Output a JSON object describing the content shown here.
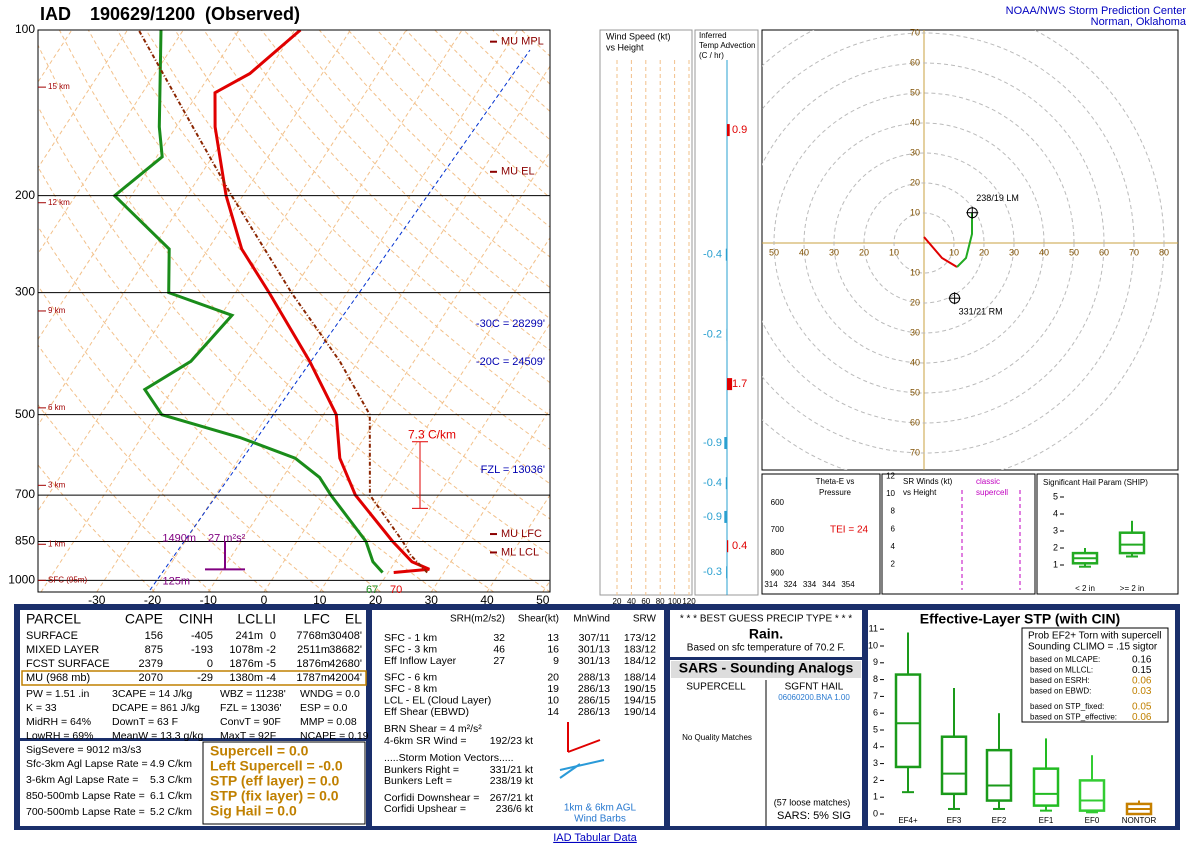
{
  "header": {
    "station": "IAD",
    "time": "190629/1200",
    "status": "(Observed)",
    "org": "NOAA/NWS Storm Prediction Center",
    "location": "Norman, Oklahoma"
  },
  "skewt": {
    "type": "skewt",
    "plim": [
      100,
      1050
    ],
    "pressure_ticks": [
      100,
      200,
      300,
      500,
      700,
      850,
      1000
    ],
    "temp_ticks": [
      -30,
      -20,
      -10,
      0,
      10,
      20,
      30,
      40,
      50
    ],
    "height_labels": [
      {
        "p": 127,
        "label": "15 km"
      },
      {
        "p": 206,
        "label": "12 km"
      },
      {
        "p": 324,
        "label": "9 km"
      },
      {
        "p": 486,
        "label": "6 km"
      },
      {
        "p": 672,
        "label": "3 km"
      },
      {
        "p": 860,
        "label": "1 km"
      },
      {
        "p": 1000,
        "label": "SFC (95m)"
      }
    ],
    "levels": [
      {
        "p": 105,
        "label": "MU MPL"
      },
      {
        "p": 181,
        "label": "MU EL"
      },
      {
        "p": 824,
        "label": "MU LFC"
      },
      {
        "p": 890,
        "label": "ML LCL"
      }
    ],
    "isotherm_heights": [
      {
        "p": 342,
        "label": "-30C = 28299'"
      },
      {
        "p": 401,
        "label": "-20C = 24509'"
      },
      {
        "p": 630,
        "label": "FZL = 13036'"
      }
    ],
    "profiles": [
      {
        "color": "#e00000",
        "width": 3,
        "dash": false,
        "p": [
          968,
          955,
          925,
          850,
          700,
          600,
          500,
          400,
          300,
          250,
          200,
          150,
          130,
          120,
          100
        ],
        "t": [
          21,
          27,
          23,
          17.2,
          5.1,
          -2,
          -7.7,
          -18.7,
          -34,
          -44,
          -53,
          -63,
          -67,
          -63,
          -59
        ]
      },
      {
        "color": "#1a8c1a",
        "width": 3,
        "dash": false,
        "p": [
          968,
          925,
          850,
          700,
          650,
          600,
          550,
          500,
          450,
          400,
          330,
          300,
          250,
          200,
          170,
          150,
          100
        ],
        "t": [
          19,
          16,
          12.4,
          0.7,
          -3.4,
          -10,
          -22.4,
          -39,
          -45,
          -40,
          -38,
          -52,
          -57,
          -73,
          -69,
          -73,
          -84
        ]
      },
      {
        "color": "#8b2500",
        "width": 2,
        "dash": true,
        "p": [
          968,
          900,
          850,
          700,
          500,
          400,
          300,
          200,
          150,
          100
        ],
        "t": [
          27,
          22,
          19,
          7.7,
          -1.7,
          -13.3,
          -30,
          -52,
          -67,
          -88
        ]
      }
    ],
    "lapse_rate": "7.3 C/km",
    "inflow": {
      "top": "1490m",
      "srh": "27 m²s²",
      "bottom": "125m"
    },
    "surface": {
      "dewpoint_f": 67,
      "temp_f": 70
    }
  },
  "wind_panel": {
    "title": [
      "Wind Speed (kt)",
      "vs Height"
    ],
    "ticks": [
      20,
      40,
      60,
      80,
      100,
      120
    ]
  },
  "temp_advection": {
    "title": [
      "Inferred",
      "Temp Advection",
      "(C / hr)"
    ],
    "p": [
      152,
      256,
      358,
      440,
      563,
      666,
      767,
      867,
      967
    ],
    "values": [
      0.9,
      -0.4,
      -0.2,
      1.7,
      -0.9,
      -0.4,
      -0.9,
      0.4,
      -0.3
    ]
  },
  "hodograph": {
    "type": "hodograph",
    "rings": [
      10,
      20,
      30,
      40,
      50,
      60,
      70,
      80
    ],
    "traces": [
      {
        "color": "#e00000",
        "u": [
          0,
          6,
          11
        ],
        "v": [
          2,
          -5,
          -8
        ]
      },
      {
        "color": "#22aa22",
        "u": [
          11,
          14,
          16,
          16
        ],
        "v": [
          -8,
          -5,
          3,
          10
        ]
      }
    ],
    "storm_motions": [
      {
        "u": 10.2,
        "v": -18.4,
        "label": "331/21 RM"
      },
      {
        "u": 16.1,
        "v": 10.1,
        "label": "238/19 LM"
      }
    ]
  },
  "theta_panel": {
    "title": [
      "Theta-E vs",
      "Pressure"
    ],
    "pressure_ticks": [
      600,
      700,
      800,
      900
    ],
    "theta_ticks": [
      314,
      324,
      334,
      344,
      354
    ],
    "tei": "TEI = 24"
  },
  "sr_panel": {
    "title": [
      "SR Winds (kt)",
      "vs Height"
    ],
    "height_ticks": [
      2,
      4,
      6,
      8,
      10,
      12
    ],
    "note": [
      "classic",
      "supercell"
    ]
  },
  "ship": {
    "type": "box",
    "title": "Significant Hail Param (SHIP)",
    "yticks": [
      1,
      2,
      3,
      4,
      5
    ],
    "categories": [
      "< 2 in",
      ">= 2 in"
    ],
    "color": "#22aa22",
    "min": [
      0.9,
      1.5
    ],
    "q1": [
      1.1,
      1.7
    ],
    "median": [
      1.4,
      2.2
    ],
    "q3": [
      1.7,
      2.9
    ],
    "max": [
      2.0,
      3.6
    ]
  },
  "parcel_table": {
    "header": [
      "PARCEL",
      "CAPE",
      "CINH",
      "LCL",
      "LI",
      "LFC",
      "EL"
    ],
    "rows": [
      [
        "SURFACE",
        "156",
        "-405",
        "241m",
        "0",
        "7768m",
        "30408'"
      ],
      [
        "MIXED LAYER",
        "875",
        "-193",
        "1078m",
        "-2",
        "2511m",
        "38682'"
      ],
      [
        "FCST SURFACE",
        "2379",
        "0",
        "1876m",
        "-5",
        "1876m",
        "42680'"
      ],
      [
        "MU  (968 mb)",
        "2070",
        "-29",
        "1380m",
        "-4",
        "1787m",
        "42004'"
      ]
    ]
  },
  "indices": [
    [
      "PW = 1.51 .in",
      "K = 33",
      "MidRH = 64%",
      "LowRH = 69%",
      "SigSevere = 9012 m3/s3"
    ],
    [
      "3CAPE = 14 J/kg",
      "DCAPE = 861 J/kg",
      "DownT = 63 F",
      "MeanW = 13.3 g/kg"
    ],
    [
      "WBZ = 11238'",
      "FZL = 13036'",
      "ConvT = 90F",
      "MaxT = 92F"
    ],
    [
      "WNDG = 0.0",
      "ESP = 0.0",
      "MMP = 0.08",
      "NCAPE = 0.19"
    ]
  ],
  "lapse_rates": [
    [
      "Sfc-3km Agl Lapse Rate =",
      "4.9 C/km"
    ],
    [
      "3-6km Agl Lapse Rate =",
      "5.3 C/km"
    ],
    [
      "850-500mb Lapse Rate =",
      "6.1 C/km"
    ],
    [
      "700-500mb Lapse Rate =",
      "5.2 C/km"
    ]
  ],
  "summary": [
    "Supercell = 0.0",
    "Left Supercell = -0.0",
    "STP (eff layer) = 0.0",
    "STP (fix layer) = 0.0",
    "Sig Hail = 0.0"
  ],
  "kinematics": {
    "header": [
      "SRH(m2/s2)",
      "Shear(kt)",
      "MnWind",
      "SRW"
    ],
    "rows": [
      [
        "SFC - 1 km",
        "32",
        "13",
        "307/11",
        "173/12"
      ],
      [
        "SFC - 3 km",
        "46",
        "16",
        "301/13",
        "183/12"
      ],
      [
        "Eff Inflow Layer",
        "27",
        "9",
        "301/13",
        "184/12"
      ],
      [
        "SFC - 6 km",
        null,
        "20",
        "288/13",
        "188/14"
      ],
      [
        "SFC - 8 km",
        null,
        "19",
        "286/13",
        "190/15"
      ],
      [
        "LCL - EL (Cloud Layer)",
        null,
        "10",
        "286/15",
        "194/15"
      ],
      [
        "Eff Shear (EBWD)",
        null,
        "14",
        "286/13",
        "190/14"
      ]
    ],
    "lines": [
      [
        "BRN Shear = 4 m²/s²",
        ""
      ],
      [
        "4-6km SR Wind =",
        "192/23 kt"
      ],
      [
        ".....Storm Motion Vectors.....",
        ""
      ],
      [
        "Bunkers Right =",
        "331/21 kt"
      ],
      [
        "Bunkers Left =",
        "238/19 kt"
      ],
      [
        "Corfidi Downshear =",
        "267/21 kt"
      ],
      [
        "Corfidi Upshear =",
        "236/6 kt"
      ]
    ],
    "legend": [
      "1km & 6km AGL",
      "Wind Barbs"
    ]
  },
  "precip": {
    "title": "* * * BEST GUESS PRECIP TYPE * * *",
    "type": "Rain.",
    "basis": "Based on sfc temperature of 70.2 F."
  },
  "sars": {
    "title": "SARS - Sounding Analogs",
    "supercell": "SUPERCELL",
    "hail": "SGFNT HAIL",
    "hail_match": "06060200.BNA  1.00",
    "supercell_note": "No Quality Matches",
    "loose": "(57 loose matches)",
    "result": "SARS:  5% SIG"
  },
  "stp": {
    "type": "box",
    "title": "Effective-Layer STP (with CIN)",
    "yticks": [
      0,
      1,
      2,
      3,
      4,
      5,
      6,
      7,
      8,
      9,
      10,
      11
    ],
    "categories": [
      "EF4+",
      "EF3",
      "EF2",
      "EF1",
      "EF0",
      "NONTOR"
    ],
    "colors": [
      "#1a9a1a",
      "#1a9a1a",
      "#1a9a1a",
      "#22bb22",
      "#33cc33",
      "#c68000"
    ],
    "min": [
      1.3,
      0.3,
      0.3,
      0.2,
      0.1,
      0
    ],
    "q1": [
      2.8,
      1.2,
      0.8,
      0.5,
      0.2,
      0
    ],
    "median": [
      5.4,
      2.4,
      1.7,
      1.2,
      0.8,
      0.3
    ],
    "q3": [
      8.3,
      4.6,
      3.8,
      2.7,
      2,
      0.6
    ],
    "max": [
      10.8,
      7.5,
      6,
      4.5,
      3.5,
      0.8
    ],
    "prob_title": [
      "Prob EF2+ Torn with supercell",
      "Sounding CLIMO = .15 sigtor"
    ],
    "prob": [
      [
        "based on MLCAPE:",
        "0.16"
      ],
      [
        "based on MLLCL:",
        "0.15"
      ],
      [
        "based on ESRH:",
        "0.06"
      ],
      [
        "based on EBWD:",
        "0.03"
      ],
      [
        "based on STP_fixed:",
        "0.05"
      ],
      [
        "based on STP_effective:",
        "0.06"
      ]
    ]
  },
  "footer": {
    "link": "IAD Tabular Data"
  }
}
